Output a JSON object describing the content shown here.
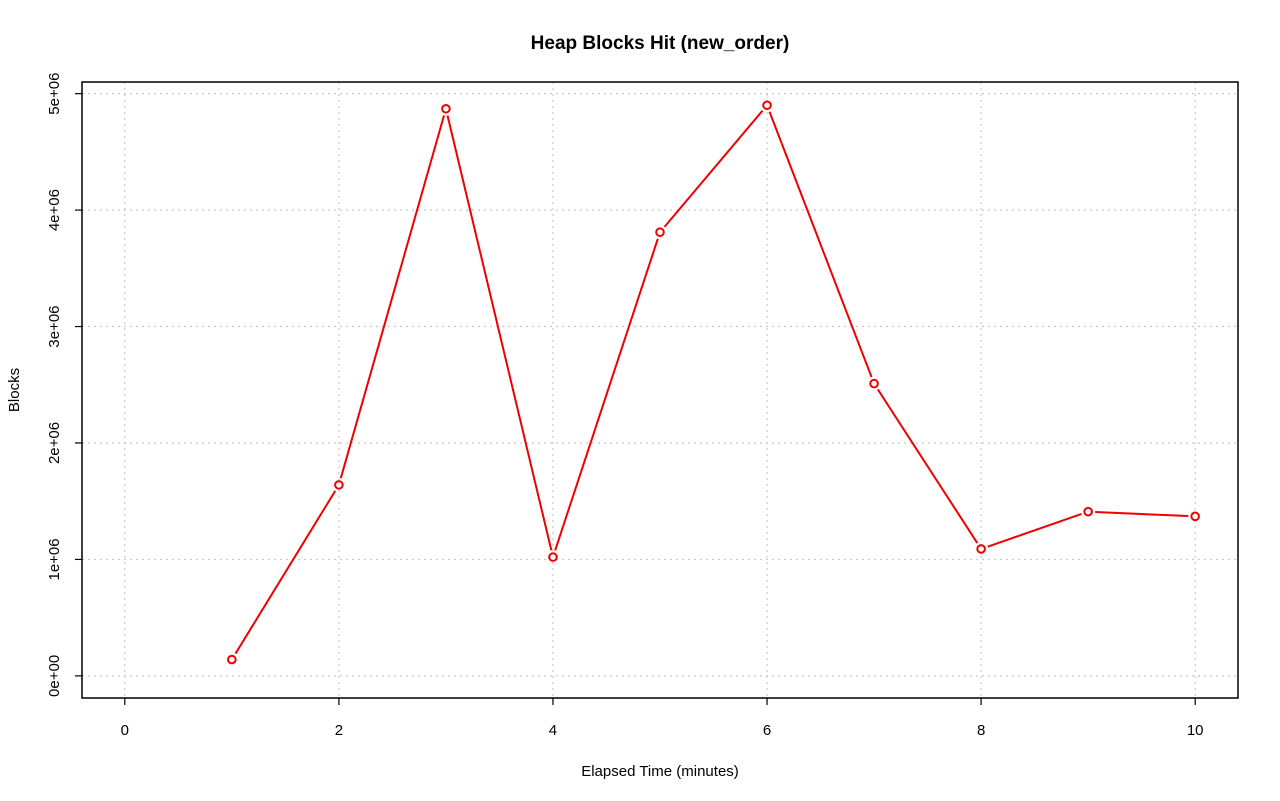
{
  "chart_data": {
    "type": "line",
    "title": "Heap Blocks Hit (new_order)",
    "xlabel": "Elapsed Time (minutes)",
    "ylabel": "Blocks",
    "xlim": [
      -0.4,
      10.4
    ],
    "ylim": [
      -190000,
      5100000
    ],
    "x_ticks": [
      0,
      2,
      4,
      6,
      8,
      10
    ],
    "x_tick_labels": [
      "0",
      "2",
      "4",
      "6",
      "8",
      "10"
    ],
    "y_ticks": [
      0,
      1000000,
      2000000,
      3000000,
      4000000,
      5000000
    ],
    "y_tick_labels": [
      "0e+00",
      "1e+06",
      "2e+06",
      "3e+06",
      "4e+06",
      "5e+06"
    ],
    "grid": true,
    "series": [
      {
        "color": "#ee0000",
        "x": [
          1,
          2,
          3,
          4,
          5,
          6,
          7,
          8,
          9,
          10
        ],
        "y": [
          140000,
          1640000,
          4870000,
          1020000,
          3810000,
          4900000,
          2510000,
          1090000,
          1410000,
          1370000
        ]
      }
    ]
  }
}
